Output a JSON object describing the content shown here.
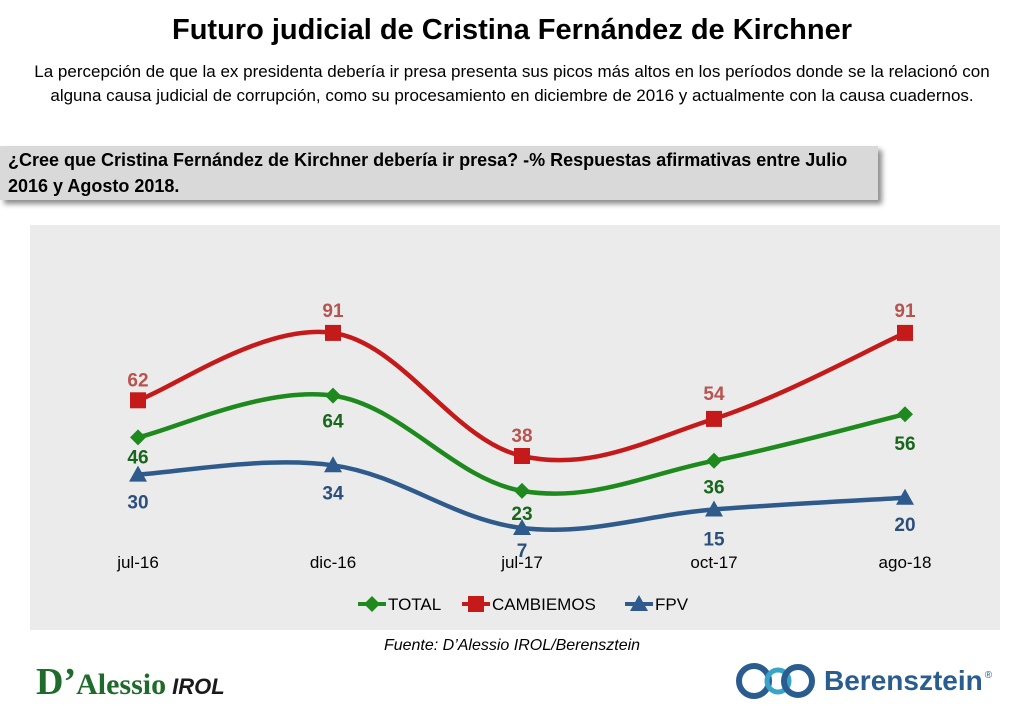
{
  "header": {
    "title": "Futuro judicial de Cristina Fernández de Kirchner",
    "subtitle": "La percepción de que la ex presidenta debería ir presa presenta sus picos más altos en los períodos donde se la relacionó con alguna causa judicial de corrupción, como su procesamiento en diciembre de 2016 y actualmente con la causa cuadernos.",
    "question": "¿Cree que Cristina Fernández de Kirchner debería ir presa? -% Respuestas afirmativas entre Julio 2016 y Agosto 2018."
  },
  "chart_data": {
    "type": "line",
    "categories": [
      "jul-16",
      "dic-16",
      "jul-17",
      "oct-17",
      "ago-18"
    ],
    "series": [
      {
        "name": "TOTAL",
        "values": [
          46,
          64,
          23,
          36,
          56
        ],
        "color": "#1e8a1e",
        "marker": "diamond",
        "label_color": "#17661b"
      },
      {
        "name": "CAMBIEMOS",
        "values": [
          62,
          91,
          38,
          54,
          91
        ],
        "color": "#c41a1a",
        "marker": "square",
        "label_color": "#b85450"
      },
      {
        "name": "FPV",
        "values": [
          30,
          34,
          7,
          15,
          20
        ],
        "color": "#2e5b8c",
        "marker": "triangle",
        "label_color": "#2b4f7d"
      }
    ],
    "legend_position": "bottom",
    "grid": false,
    "smooth": true
  },
  "footer": {
    "source": "Fuente: D’Alessio IROL/Berensztein",
    "logo_left_big": "D’",
    "logo_left_rest": "Alessio",
    "logo_left_irol": "IROL",
    "logo_right_word": "Berensztein",
    "logo_right_reg": "®"
  }
}
